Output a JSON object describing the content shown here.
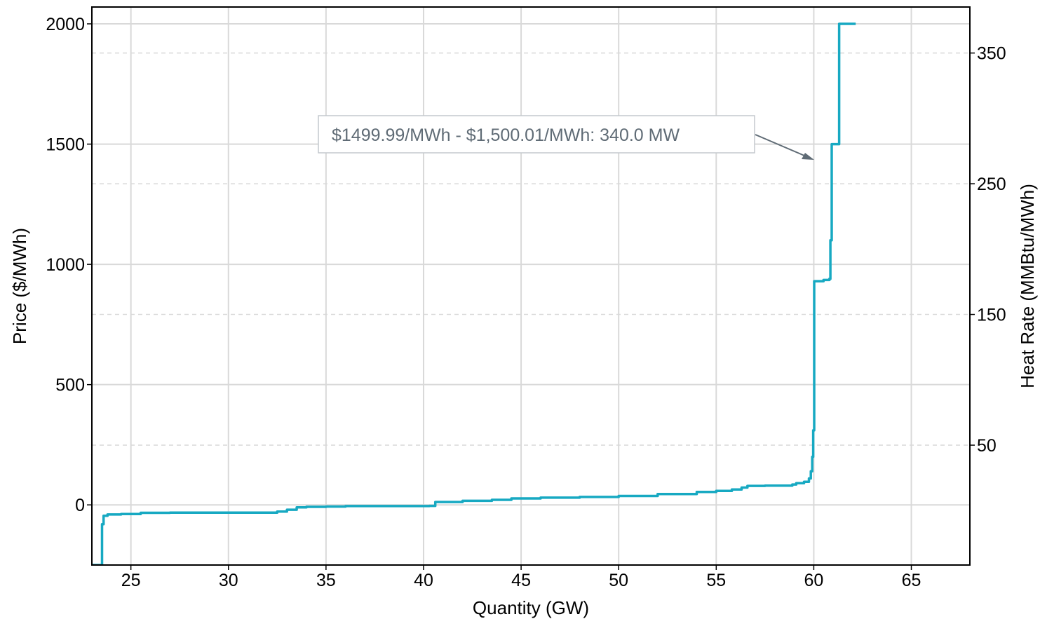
{
  "chart_data": {
    "type": "line",
    "title": "",
    "xlabel": "Quantity (GW)",
    "ylabel": "Price ($/MWh)",
    "y2label": "Heat Rate (MMBtu/MWh)",
    "xlim": [
      23,
      68
    ],
    "ylim": [
      -250,
      2070
    ],
    "y2lim": [
      -41.7,
      385.2
    ],
    "xticks": [
      25,
      30,
      35,
      40,
      45,
      50,
      55,
      60,
      65
    ],
    "xtick_labels": [
      "25",
      "30",
      "35",
      "40",
      "45",
      "50",
      "55",
      "60",
      "65"
    ],
    "yticks": [
      0,
      500,
      1000,
      1500,
      2000
    ],
    "ytick_labels": [
      "0",
      "500",
      "1000",
      "1500",
      "2000"
    ],
    "y2ticks": [
      50,
      150,
      250,
      350
    ],
    "y2tick_labels": [
      "50",
      "150",
      "250",
      "350"
    ],
    "grid": true,
    "series": [
      {
        "color": "#17a9c2",
        "step": true,
        "x": [
          23.0,
          23.5,
          23.52,
          23.6,
          23.8,
          24.5,
          25.5,
          27,
          30,
          32,
          32.5,
          33,
          33.5,
          34,
          35,
          36,
          38,
          40,
          40.3,
          40.6,
          42,
          43.5,
          44.5,
          46,
          48,
          50,
          52,
          54,
          55,
          55.8,
          56.3,
          56.6,
          57.5,
          58.5,
          58.9,
          59.1,
          59.5,
          59.75,
          59.85,
          59.92,
          59.97,
          60.02,
          60.5,
          60.8,
          60.85,
          60.92,
          61.3,
          62.15
        ],
        "y": [
          -250,
          -250,
          -80,
          -45,
          -40,
          -38,
          -33,
          -32,
          -32,
          -32,
          -28,
          -20,
          -10,
          -8,
          -7,
          -5,
          -5,
          -5,
          -4,
          12,
          17,
          21,
          27,
          30,
          33,
          37,
          45,
          54,
          58,
          64,
          72,
          79,
          80,
          80,
          85,
          90,
          96,
          110,
          140,
          200,
          310,
          930,
          935,
          940,
          1100,
          1500,
          2000,
          2000
        ]
      }
    ],
    "annotations": [
      {
        "text": "$1499.99/MWh - $1,500.01/MWh: 340.0 MW",
        "target_x": 60.0,
        "target_y": 1420
      }
    ]
  }
}
